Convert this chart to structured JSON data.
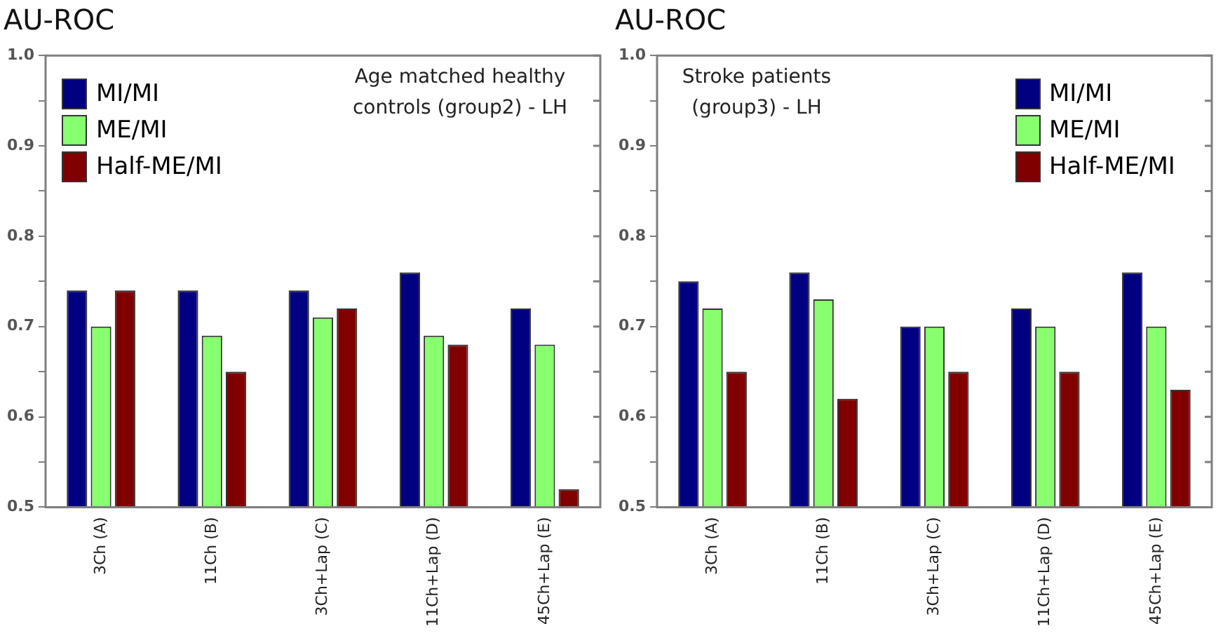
{
  "chart_data": [
    {
      "type": "bar",
      "title": "AU-ROC",
      "annotations": [
        "Age matched healthy controls (group2) - LH"
      ],
      "categories": [
        "3Ch (A)",
        "11Ch (B)",
        "3Ch+Lap (C)",
        "11Ch+Lap (D)",
        "45Ch+Lap (E)"
      ],
      "series": [
        {
          "name": "MI/MI",
          "color": "#000080",
          "values": [
            0.74,
            0.74,
            0.74,
            0.76,
            0.72
          ]
        },
        {
          "name": "ME/MI",
          "color": "#88ff6e",
          "values": [
            0.7,
            0.69,
            0.71,
            0.69,
            0.68
          ]
        },
        {
          "name": "Half-ME/MI",
          "color": "#800000",
          "values": [
            0.74,
            0.65,
            0.72,
            0.68,
            0.52
          ]
        }
      ],
      "ylim": [
        0.5,
        1.0
      ],
      "yticks": [
        0.5,
        {
          "value": 0.55,
          "label": null
        },
        0.6,
        {
          "value": 0.65,
          "label": null
        },
        0.7,
        {
          "value": 0.75,
          "label": null
        },
        0.8,
        {
          "value": 0.85,
          "label": null
        },
        0.9,
        {
          "value": 0.95,
          "label": null
        },
        {
          "value": 1,
          "label": "1.0"
        }
      ],
      "grid": false,
      "legend": "top left"
    },
    {
      "type": "bar",
      "title": "AU-ROC",
      "annotations": [
        "Stroke patients (group3) - LH"
      ],
      "categories": [
        "3Ch (A)",
        "11Ch (B)",
        "3Ch+Lap (C)",
        "11Ch+Lap (D)",
        "45Ch+Lap (E)"
      ],
      "series": [
        {
          "name": "MI/MI",
          "color": "#000080",
          "values": [
            0.75,
            0.76,
            0.7,
            0.72,
            0.76
          ]
        },
        {
          "name": "ME/MI",
          "color": "#88ff6e",
          "values": [
            0.72,
            0.73,
            0.7,
            0.7,
            0.7
          ]
        },
        {
          "name": "Half-ME/MI",
          "color": "#800000",
          "values": [
            0.65,
            0.62,
            0.65,
            0.65,
            0.63
          ]
        }
      ],
      "ylim": [
        0.5,
        1.0
      ],
      "yticks": [
        0.5,
        {
          "value": 0.55,
          "label": null
        },
        0.6,
        {
          "value": 0.65,
          "label": null
        },
        0.7,
        {
          "value": 0.75,
          "label": null
        },
        0.8,
        {
          "value": 0.85,
          "label": null
        },
        0.9,
        {
          "value": 0.95,
          "label": null
        },
        {
          "value": 1,
          "label": "1.0"
        }
      ],
      "grid": false,
      "legend": "top right"
    }
  ]
}
